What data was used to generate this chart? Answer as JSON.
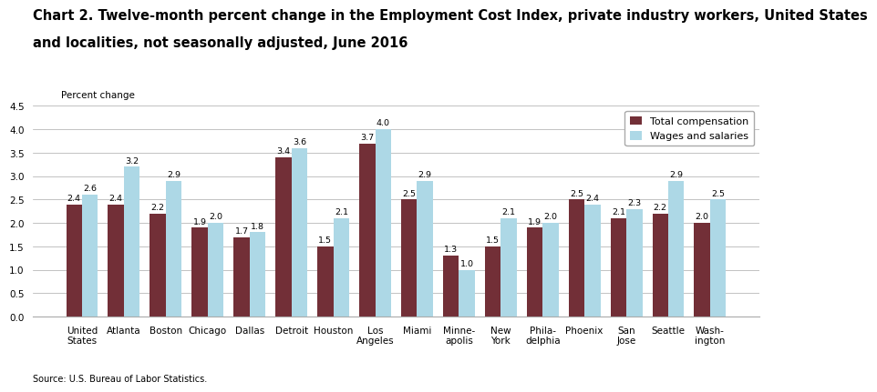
{
  "title_line1": "Chart 2. Twelve-month percent change in the Employment Cost Index, private industry workers, United States",
  "title_line2": "and localities, not seasonally adjusted, June 2016",
  "ylabel": "Percent change",
  "source": "Source: U.S. Bureau of Labor Statistics.",
  "categories": [
    "United\nStates",
    "Atlanta",
    "Boston",
    "Chicago",
    "Dallas",
    "Detroit",
    "Houston",
    "Los\nAngeles",
    "Miami",
    "Minne-\napolis",
    "New\nYork",
    "Phila-\ndelphia",
    "Phoenix",
    "San\nJose",
    "Seattle",
    "Wash-\nington"
  ],
  "total_compensation": [
    2.4,
    2.4,
    2.2,
    1.9,
    1.7,
    3.4,
    1.5,
    3.7,
    2.5,
    1.3,
    1.5,
    1.9,
    2.5,
    2.1,
    2.2,
    2.0
  ],
  "wages_and_salaries": [
    2.6,
    3.2,
    2.9,
    2.0,
    1.8,
    3.6,
    2.1,
    4.0,
    2.9,
    1.0,
    2.1,
    2.0,
    2.4,
    2.3,
    2.9,
    2.5
  ],
  "color_total": "#722F37",
  "color_wages": "#ADD8E6",
  "ylim": [
    0,
    4.5
  ],
  "yticks": [
    0.0,
    0.5,
    1.0,
    1.5,
    2.0,
    2.5,
    3.0,
    3.5,
    4.0,
    4.5
  ],
  "bar_width": 0.38,
  "legend_labels": [
    "Total compensation",
    "Wages and salaries"
  ],
  "label_fontsize": 6.8,
  "tick_fontsize": 7.5,
  "title_fontsize": 10.5,
  "ylabel_fontsize": 7.5,
  "source_fontsize": 7.0
}
